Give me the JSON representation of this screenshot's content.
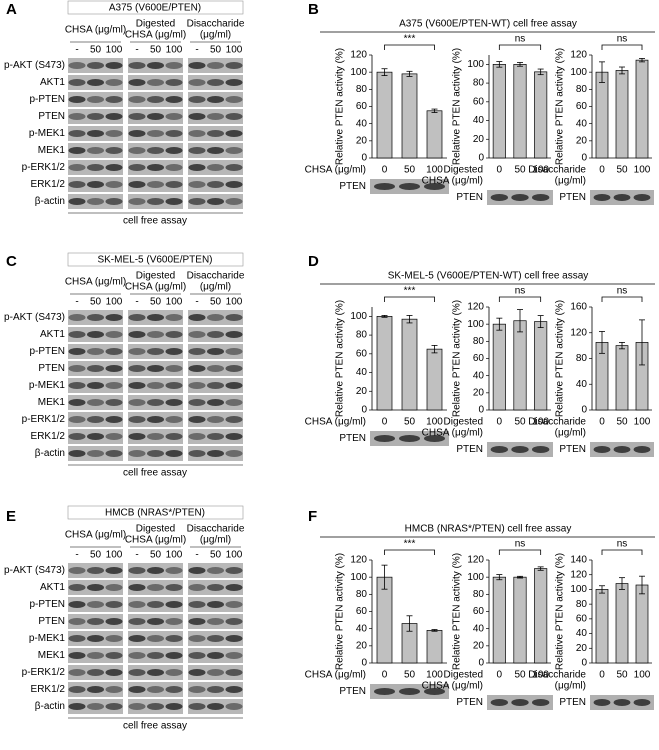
{
  "panel_labels": [
    "A",
    "B",
    "C",
    "D",
    "E",
    "F"
  ],
  "blots": [
    {
      "title": "A375 (V600E/PTEN)",
      "groups": [
        {
          "label": [
            "CHSA (μg/ml)"
          ],
          "doses": [
            "-",
            "50",
            "100"
          ]
        },
        {
          "label": [
            "Digested",
            "CHSA (μg/ml)"
          ],
          "doses": [
            "-",
            "50",
            "100"
          ]
        },
        {
          "label": [
            "Disaccharide",
            "(μg/ml)"
          ],
          "doses": [
            "-",
            "50",
            "100"
          ]
        }
      ],
      "rows": [
        "p-AKT (S473)",
        "AKT1",
        "p-PTEN",
        "PTEN",
        "p-MEK1",
        "MEK1",
        "p-ERK1/2",
        "ERK1/2",
        "β-actin"
      ],
      "footer": "cell free assay"
    },
    {
      "title": "SK-MEL-5 (V600E/PTEN)",
      "groups": [
        {
          "label": [
            "CHSA (μg/ml)"
          ],
          "doses": [
            "-",
            "50",
            "100"
          ]
        },
        {
          "label": [
            "Digested",
            "CHSA (μg/ml)"
          ],
          "doses": [
            "-",
            "50",
            "100"
          ]
        },
        {
          "label": [
            "Disaccharide",
            "(μg/ml)"
          ],
          "doses": [
            "-",
            "50",
            "100"
          ]
        }
      ],
      "rows": [
        "p-AKT (S473)",
        "AKT1",
        "p-PTEN",
        "PTEN",
        "p-MEK1",
        "MEK1",
        "p-ERK1/2",
        "ERK1/2",
        "β-actin"
      ],
      "footer": "cell free assay"
    },
    {
      "title": "HMCB (NRAS*/PTEN)",
      "groups": [
        {
          "label": [
            "CHSA (μg/ml)"
          ],
          "doses": [
            "-",
            "50",
            "100"
          ]
        },
        {
          "label": [
            "Digested",
            "CHSA (μg/ml)"
          ],
          "doses": [
            "-",
            "50",
            "100"
          ]
        },
        {
          "label": [
            "Disaccharide",
            "(μg/ml)"
          ],
          "doses": [
            "-",
            "50",
            "100"
          ]
        }
      ],
      "rows": [
        "p-AKT (S473)",
        "AKT1",
        "p-PTEN",
        "PTEN",
        "p-MEK1",
        "MEK1",
        "p-ERK1/2",
        "ERK1/2",
        "β-actin"
      ],
      "footer": "cell free assay"
    }
  ],
  "assay_titles": [
    "A375 (V600E/PTEN-WT) cell free assay",
    "SK-MEL-5 (V600E/PTEN-WT) cell free assay",
    "HMCB (NRAS*/PTEN) cell free assay"
  ],
  "chart_data": [
    {
      "type": "bar",
      "y_label": "Relative PTEN activity (%)",
      "x_label": [
        "CHSA (μg/ml)"
      ],
      "categories": [
        "0",
        "50",
        "100"
      ],
      "values": [
        100,
        98,
        55
      ],
      "errors": [
        4,
        3,
        2
      ],
      "ylim": [
        0,
        120
      ],
      "yticks": [
        0,
        20,
        40,
        60,
        80,
        100,
        120
      ],
      "annotation": "***",
      "blot_label": "PTEN",
      "color": "#c0c0c0"
    },
    {
      "type": "bar",
      "y_label": "Relative PTEN activity (%)",
      "x_label": [
        "Digested",
        "CHSA (μg/ml)"
      ],
      "categories": [
        "0",
        "50",
        "100"
      ],
      "values": [
        100,
        100,
        92
      ],
      "errors": [
        3,
        2,
        3
      ],
      "ylim": [
        0,
        110
      ],
      "yticks": [
        0,
        20,
        40,
        60,
        80,
        100
      ],
      "annotation": "ns",
      "blot_label": "PTEN",
      "color": "#c0c0c0"
    },
    {
      "type": "bar",
      "y_label": "Relative PTEN activity (%)",
      "x_label": [
        "Disaccharide",
        "(μg/ml)"
      ],
      "categories": [
        "0",
        "50",
        "100"
      ],
      "values": [
        100,
        102,
        114
      ],
      "errors": [
        12,
        4,
        2
      ],
      "ylim": [
        0,
        120
      ],
      "yticks": [
        0,
        20,
        40,
        60,
        80,
        100,
        120
      ],
      "annotation": "ns",
      "blot_label": "PTEN",
      "color": "#c0c0c0"
    },
    {
      "type": "bar",
      "y_label": "Relative PTEN activity (%)",
      "x_label": [
        "CHSA (μg/ml)"
      ],
      "categories": [
        "0",
        "50",
        "100"
      ],
      "values": [
        100,
        97,
        65
      ],
      "errors": [
        1,
        4,
        4
      ],
      "ylim": [
        0,
        110
      ],
      "yticks": [
        0,
        20,
        40,
        60,
        80,
        100
      ],
      "annotation": "***",
      "blot_label": "PTEN",
      "color": "#c0c0c0"
    },
    {
      "type": "bar",
      "y_label": "Relative PTEN activity (%)",
      "x_label": [
        "Digested",
        "CHSA (μg/ml)"
      ],
      "categories": [
        "0",
        "50",
        "100"
      ],
      "values": [
        100,
        104,
        103
      ],
      "errors": [
        7,
        13,
        7
      ],
      "ylim": [
        0,
        120
      ],
      "yticks": [
        0,
        20,
        40,
        60,
        80,
        100,
        120
      ],
      "annotation": "ns",
      "blot_label": "PTEN",
      "color": "#c0c0c0"
    },
    {
      "type": "bar",
      "y_label": "Relative PTEN activity (%)",
      "x_label": [
        "Disaccharide",
        "(μg/ml)"
      ],
      "categories": [
        "0",
        "50",
        "100"
      ],
      "values": [
        105,
        100,
        105
      ],
      "errors": [
        17,
        5,
        35
      ],
      "ylim": [
        0,
        160
      ],
      "yticks": [
        0,
        40,
        80,
        120,
        160
      ],
      "annotation": "ns",
      "blot_label": "PTEN",
      "color": "#c0c0c0"
    },
    {
      "type": "bar",
      "y_label": "Relative PTEN activity (%)",
      "x_label": [
        "CHSA (μg/ml)"
      ],
      "categories": [
        "0",
        "50",
        "100"
      ],
      "values": [
        100,
        46,
        38
      ],
      "errors": [
        14,
        9,
        1
      ],
      "ylim": [
        0,
        120
      ],
      "yticks": [
        0,
        20,
        40,
        60,
        80,
        100,
        120
      ],
      "annotation": "***",
      "blot_label": "PTEN",
      "color": "#c0c0c0"
    },
    {
      "type": "bar",
      "y_label": "Relative PTEN activity (%)",
      "x_label": [
        "Digested",
        "CHSA (μg/ml)"
      ],
      "categories": [
        "0",
        "50",
        "100"
      ],
      "values": [
        100,
        100,
        110
      ],
      "errors": [
        3,
        1,
        2
      ],
      "ylim": [
        0,
        120
      ],
      "yticks": [
        0,
        20,
        40,
        60,
        80,
        100,
        120
      ],
      "annotation": "ns",
      "blot_label": "PTEN",
      "color": "#c0c0c0"
    },
    {
      "type": "bar",
      "y_label": "Relative PTEN activity (%)",
      "x_label": [
        "Disaccharide",
        "(μg/ml)"
      ],
      "categories": [
        "0",
        "50",
        "100"
      ],
      "values": [
        100,
        108,
        106
      ],
      "errors": [
        5,
        8,
        12
      ],
      "ylim": [
        0,
        140
      ],
      "yticks": [
        0,
        20,
        40,
        60,
        80,
        100,
        120,
        140
      ],
      "annotation": "ns",
      "blot_label": "PTEN",
      "color": "#c0c0c0"
    }
  ]
}
